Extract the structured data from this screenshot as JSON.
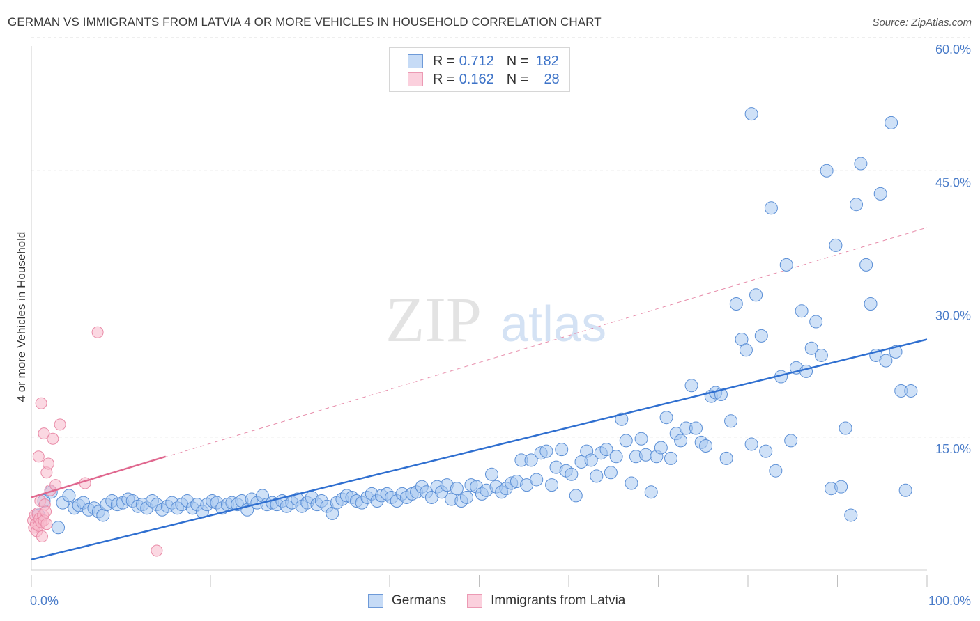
{
  "title": "GERMAN VS IMMIGRANTS FROM LATVIA 4 OR MORE VEHICLES IN HOUSEHOLD CORRELATION CHART",
  "source": "Source: ZipAtlas.com",
  "watermark": {
    "zip": "ZIP",
    "atlas": "atlas"
  },
  "legend": {
    "rows": [
      {
        "r_label": "R = ",
        "r_value": "0.712",
        "n_label": "N = ",
        "n_value": "182",
        "color": "#a8c8f0"
      },
      {
        "r_label": "R = ",
        "r_value": "0.162",
        "n_label": "N = ",
        "n_value": "28",
        "color": "#f7b8cb"
      }
    ],
    "bottom": [
      "Germans",
      "Immigrants from Latvia"
    ]
  },
  "colors": {
    "blue_fill": "#a8c8f0",
    "blue_stroke": "#5b8fd6",
    "blue_line": "#2f6fd0",
    "pink_fill": "#f7b8cb",
    "pink_stroke": "#e98aa7",
    "pink_line": "#e0688f",
    "grid": "#dcdcdc",
    "tick_text": "#4a7cc9"
  },
  "chart_data": {
    "type": "scatter",
    "title": "GERMAN VS IMMIGRANTS FROM LATVIA 4 OR MORE VEHICLES IN HOUSEHOLD CORRELATION CHART",
    "xlabel": "",
    "ylabel": "4 or more Vehicles in Household",
    "xlim": [
      0,
      100
    ],
    "ylim": [
      0,
      65
    ],
    "x_tick_labels": [
      "0.0%",
      "100.0%"
    ],
    "y_ticks": [
      15,
      30,
      45,
      60
    ],
    "y_tick_labels": [
      "15.0%",
      "30.0%",
      "45.0%",
      "60.0%"
    ],
    "grid": true,
    "legend_position": "top-center",
    "series": [
      {
        "name": "Germans",
        "trend": {
          "x0": 0,
          "y0": 1.2,
          "x1": 100,
          "y1": 26.0
        },
        "points": [
          [
            0.8,
            6.2
          ],
          [
            1.4,
            7.8
          ],
          [
            2.2,
            8.8
          ],
          [
            3.0,
            4.8
          ],
          [
            3.5,
            7.6
          ],
          [
            4.2,
            8.4
          ],
          [
            4.8,
            7.0
          ],
          [
            5.3,
            7.3
          ],
          [
            5.8,
            7.6
          ],
          [
            6.4,
            6.8
          ],
          [
            7.0,
            7.0
          ],
          [
            7.5,
            6.6
          ],
          [
            8.0,
            6.2
          ],
          [
            8.4,
            7.4
          ],
          [
            9.0,
            7.8
          ],
          [
            9.6,
            7.4
          ],
          [
            10.2,
            7.6
          ],
          [
            10.8,
            8.0
          ],
          [
            11.3,
            7.8
          ],
          [
            11.9,
            7.2
          ],
          [
            12.4,
            7.4
          ],
          [
            12.9,
            7.0
          ],
          [
            13.5,
            7.8
          ],
          [
            14.0,
            7.4
          ],
          [
            14.6,
            6.8
          ],
          [
            15.2,
            7.2
          ],
          [
            15.7,
            7.6
          ],
          [
            16.3,
            7.0
          ],
          [
            16.8,
            7.4
          ],
          [
            17.4,
            7.8
          ],
          [
            18.0,
            7.0
          ],
          [
            18.5,
            7.4
          ],
          [
            19.1,
            6.6
          ],
          [
            19.6,
            7.4
          ],
          [
            20.2,
            7.8
          ],
          [
            20.7,
            7.6
          ],
          [
            21.3,
            7.0
          ],
          [
            21.9,
            7.4
          ],
          [
            22.4,
            7.6
          ],
          [
            23.0,
            7.4
          ],
          [
            23.5,
            7.8
          ],
          [
            24.1,
            6.8
          ],
          [
            24.6,
            8.0
          ],
          [
            25.2,
            7.6
          ],
          [
            25.8,
            8.4
          ],
          [
            26.3,
            7.4
          ],
          [
            26.9,
            7.6
          ],
          [
            27.4,
            7.4
          ],
          [
            28.0,
            7.8
          ],
          [
            28.5,
            7.2
          ],
          [
            29.1,
            7.6
          ],
          [
            29.7,
            8.0
          ],
          [
            30.2,
            7.2
          ],
          [
            30.8,
            7.6
          ],
          [
            31.3,
            8.2
          ],
          [
            31.9,
            7.4
          ],
          [
            32.4,
            7.8
          ],
          [
            33.0,
            7.2
          ],
          [
            33.6,
            6.4
          ],
          [
            34.1,
            7.6
          ],
          [
            34.7,
            8.0
          ],
          [
            35.2,
            8.4
          ],
          [
            35.8,
            8.2
          ],
          [
            36.3,
            7.8
          ],
          [
            36.9,
            7.6
          ],
          [
            37.5,
            8.2
          ],
          [
            38.0,
            8.6
          ],
          [
            38.6,
            7.8
          ],
          [
            39.1,
            8.4
          ],
          [
            39.7,
            8.6
          ],
          [
            40.2,
            8.2
          ],
          [
            40.8,
            7.8
          ],
          [
            41.4,
            8.6
          ],
          [
            41.9,
            8.2
          ],
          [
            42.5,
            8.6
          ],
          [
            43.0,
            8.8
          ],
          [
            43.6,
            9.4
          ],
          [
            44.1,
            8.8
          ],
          [
            44.7,
            8.2
          ],
          [
            45.3,
            9.4
          ],
          [
            45.8,
            8.8
          ],
          [
            46.4,
            9.6
          ],
          [
            46.9,
            8.0
          ],
          [
            47.5,
            9.2
          ],
          [
            48.0,
            7.8
          ],
          [
            48.6,
            8.2
          ],
          [
            49.1,
            9.6
          ],
          [
            49.7,
            9.4
          ],
          [
            50.3,
            8.6
          ],
          [
            50.8,
            9.0
          ],
          [
            51.4,
            10.8
          ],
          [
            51.9,
            9.4
          ],
          [
            52.5,
            8.8
          ],
          [
            53.0,
            9.2
          ],
          [
            53.6,
            9.8
          ],
          [
            54.2,
            10.0
          ],
          [
            54.7,
            12.4
          ],
          [
            55.3,
            9.6
          ],
          [
            55.8,
            12.4
          ],
          [
            56.4,
            10.2
          ],
          [
            56.9,
            13.2
          ],
          [
            57.5,
            13.4
          ],
          [
            58.1,
            9.6
          ],
          [
            58.6,
            11.6
          ],
          [
            59.2,
            13.6
          ],
          [
            59.7,
            11.2
          ],
          [
            60.3,
            10.8
          ],
          [
            60.8,
            8.4
          ],
          [
            61.4,
            12.2
          ],
          [
            62.0,
            13.4
          ],
          [
            62.5,
            12.4
          ],
          [
            63.1,
            10.6
          ],
          [
            63.6,
            13.2
          ],
          [
            64.2,
            13.6
          ],
          [
            64.7,
            11.0
          ],
          [
            65.3,
            12.8
          ],
          [
            65.9,
            17.0
          ],
          [
            66.4,
            14.6
          ],
          [
            67.0,
            9.8
          ],
          [
            67.5,
            12.8
          ],
          [
            68.1,
            14.8
          ],
          [
            68.6,
            13.0
          ],
          [
            69.2,
            8.8
          ],
          [
            69.8,
            12.8
          ],
          [
            70.3,
            13.8
          ],
          [
            70.9,
            17.2
          ],
          [
            71.4,
            12.6
          ],
          [
            72.0,
            15.4
          ],
          [
            72.5,
            14.6
          ],
          [
            73.1,
            16.0
          ],
          [
            73.7,
            20.8
          ],
          [
            74.2,
            16.0
          ],
          [
            74.8,
            14.4
          ],
          [
            75.3,
            14.0
          ],
          [
            75.9,
            19.6
          ],
          [
            76.4,
            20.0
          ],
          [
            77.0,
            19.8
          ],
          [
            77.6,
            12.6
          ],
          [
            78.1,
            16.8
          ],
          [
            78.7,
            30.0
          ],
          [
            79.3,
            26.0
          ],
          [
            79.8,
            24.8
          ],
          [
            80.4,
            14.2
          ],
          [
            80.9,
            31.0
          ],
          [
            81.5,
            26.4
          ],
          [
            82.0,
            13.4
          ],
          [
            82.6,
            40.8
          ],
          [
            83.1,
            11.2
          ],
          [
            83.7,
            21.8
          ],
          [
            84.3,
            34.4
          ],
          [
            84.8,
            14.6
          ],
          [
            85.4,
            22.8
          ],
          [
            86.0,
            29.2
          ],
          [
            86.5,
            22.4
          ],
          [
            87.1,
            25.0
          ],
          [
            87.6,
            28.0
          ],
          [
            88.2,
            24.2
          ],
          [
            88.8,
            45.0
          ],
          [
            89.3,
            9.2
          ],
          [
            89.8,
            36.6
          ],
          [
            90.4,
            9.4
          ],
          [
            90.9,
            16.0
          ],
          [
            91.5,
            6.2
          ],
          [
            92.1,
            41.2
          ],
          [
            92.6,
            45.8
          ],
          [
            93.2,
            34.4
          ],
          [
            93.7,
            30.0
          ],
          [
            94.3,
            24.2
          ],
          [
            94.8,
            42.4
          ],
          [
            95.4,
            23.6
          ],
          [
            96.0,
            50.4
          ],
          [
            96.5,
            24.6
          ],
          [
            97.1,
            20.2
          ],
          [
            97.6,
            9.0
          ],
          [
            98.2,
            20.2
          ],
          [
            80.4,
            51.4
          ]
        ]
      },
      {
        "name": "Immigrants from Latvia",
        "trend": {
          "x0": 0,
          "y0": 8.2,
          "x1": 15,
          "y1": 12.8
        },
        "extended_trend": {
          "x0": 0,
          "y0": 8.2,
          "x1": 100,
          "y1": 38.6
        },
        "points": [
          [
            0.2,
            5.6
          ],
          [
            0.3,
            4.8
          ],
          [
            0.4,
            6.2
          ],
          [
            0.5,
            5.2
          ],
          [
            0.6,
            4.4
          ],
          [
            0.7,
            6.4
          ],
          [
            0.8,
            5.0
          ],
          [
            0.9,
            5.8
          ],
          [
            1.0,
            7.8
          ],
          [
            1.1,
            5.4
          ],
          [
            1.2,
            3.8
          ],
          [
            1.3,
            6.2
          ],
          [
            1.4,
            5.6
          ],
          [
            1.5,
            7.4
          ],
          [
            1.6,
            6.6
          ],
          [
            1.7,
            5.2
          ],
          [
            1.1,
            18.8
          ],
          [
            1.4,
            15.4
          ],
          [
            1.7,
            11.0
          ],
          [
            1.9,
            12.0
          ],
          [
            2.1,
            9.0
          ],
          [
            2.4,
            14.8
          ],
          [
            2.7,
            9.6
          ],
          [
            3.2,
            16.4
          ],
          [
            6.0,
            9.8
          ],
          [
            7.4,
            26.8
          ],
          [
            0.8,
            12.8
          ],
          [
            14.0,
            2.2
          ]
        ]
      }
    ]
  }
}
